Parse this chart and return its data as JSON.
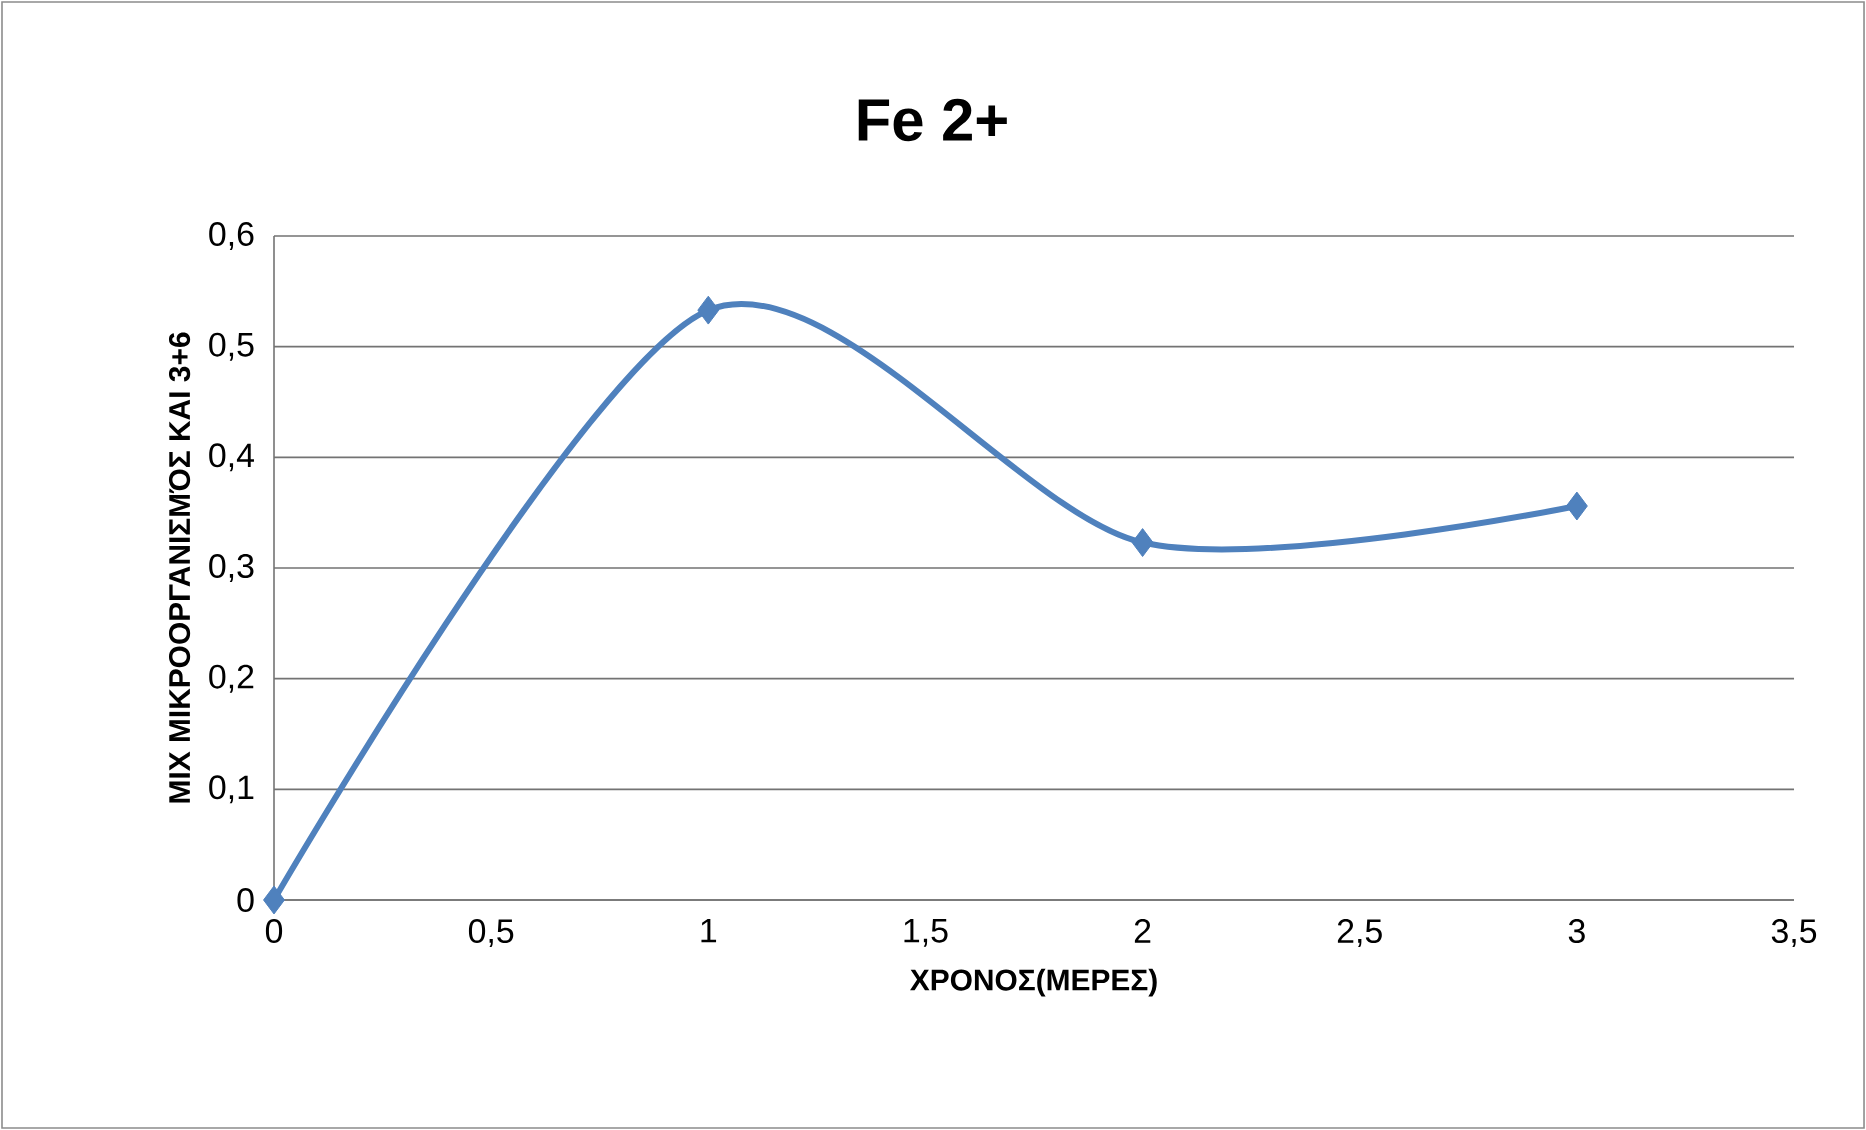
{
  "chart_data": {
    "type": "line",
    "title": "Fe 2+",
    "xlabel": "ΧΡΟΝΟΣ(ΜΕΡΕΣ)",
    "ylabel": "MIX ΜΙΚΡΟΟΡΓΑΝΙΣΜΌΣ ΚΑΙ 3+6",
    "x": [
      0,
      1,
      2,
      3
    ],
    "series": [
      {
        "color": "#4f81bd",
        "values": [
          0,
          0.533,
          0.323,
          0.356
        ]
      }
    ],
    "xlim": [
      0,
      3.5
    ],
    "ylim": [
      0,
      0.6
    ],
    "xticks": [
      0,
      {
        "value": 0.5,
        "label": "0,5"
      },
      1,
      {
        "value": 1.5,
        "label": "1,5"
      },
      2,
      {
        "value": 2.5,
        "label": "2,5"
      },
      3,
      {
        "value": 3.5,
        "label": "3,5"
      }
    ],
    "yticks": [
      0,
      {
        "value": 0.1,
        "label": "0,1"
      },
      {
        "value": 0.2,
        "label": "0,2"
      },
      {
        "value": 0.3,
        "label": "0,3"
      },
      {
        "value": 0.4,
        "label": "0,4"
      },
      {
        "value": 0.5,
        "label": "0,5"
      },
      {
        "value": 0.6,
        "label": "0,6"
      }
    ],
    "grid": "y",
    "marker": "diamond",
    "line_style": "solid"
  }
}
